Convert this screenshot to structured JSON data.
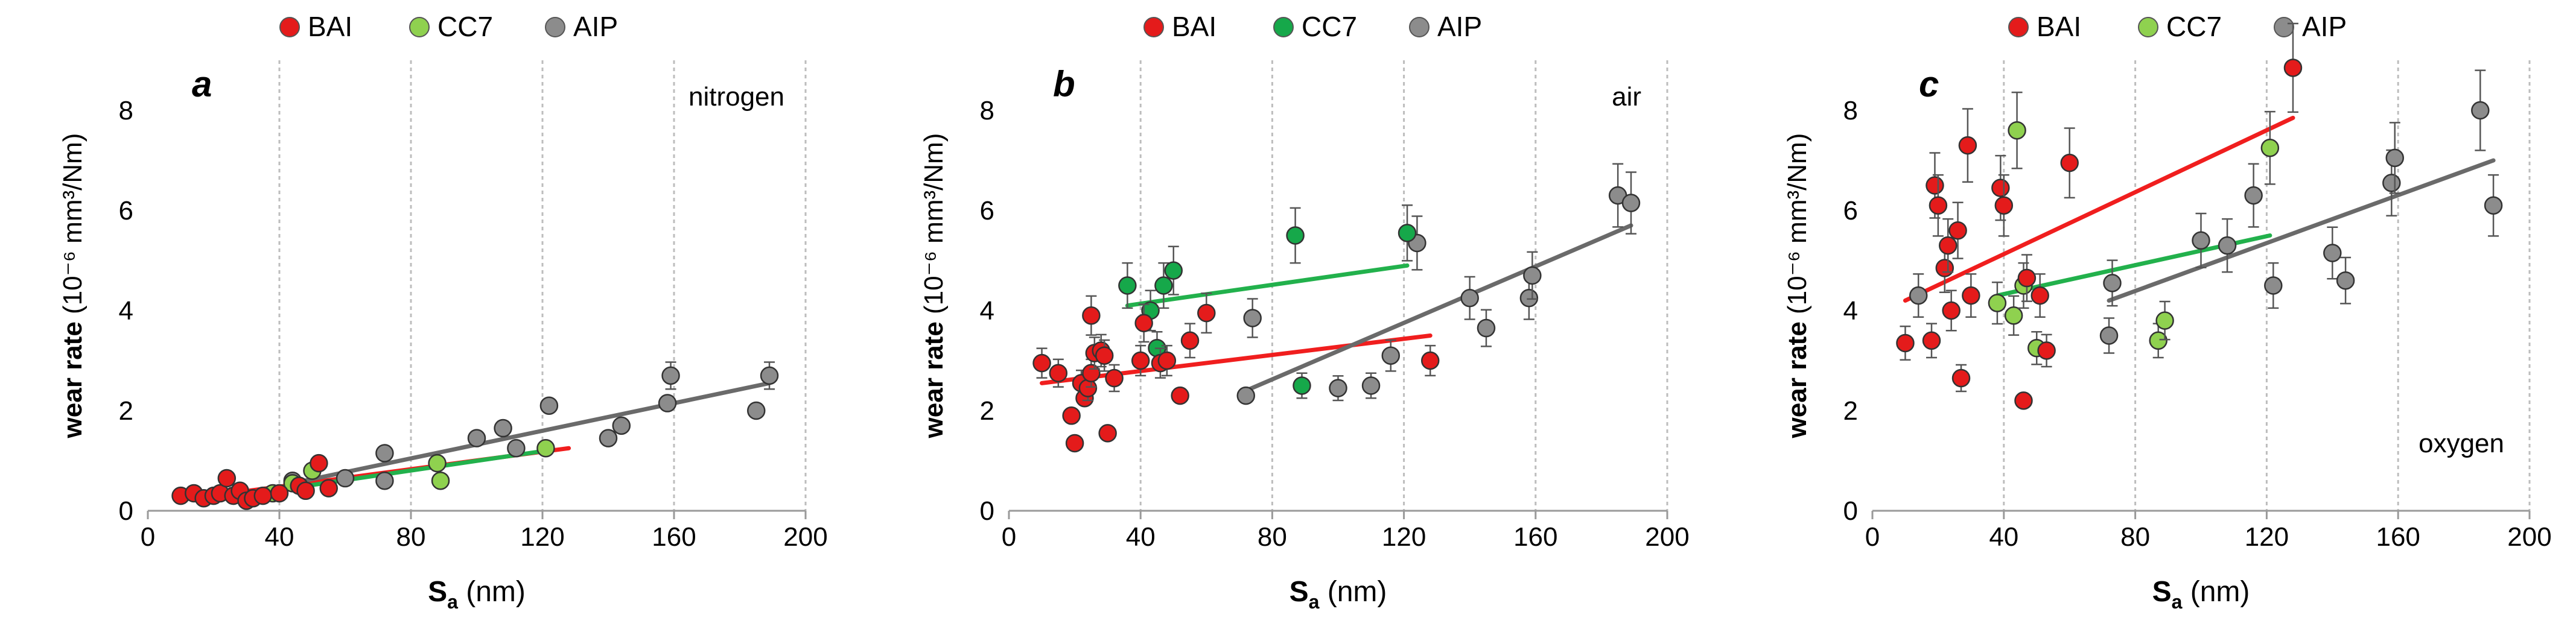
{
  "legend_labels": [
    "BAI",
    "CC7",
    "AIP"
  ],
  "colors": {
    "BAI": "#e41b1b",
    "CC7_a": "#8fd14f",
    "CC7_b": "#16a84a",
    "CC7_c": "#8fd14f",
    "AIP": "#8c8c8c",
    "fit_BAI": "#f01e1e",
    "fit_CC7": "#22b14c",
    "fit_AIP": "#6a6a6a",
    "grid": "#bdbdbd"
  },
  "chart_data": [
    {
      "type": "scatter",
      "panel_letter": "a",
      "atmosphere": "nitrogen",
      "xlabel_main": "S",
      "xlabel_sub": "a",
      "xlabel_unit": " (nm)",
      "ylabel": "wear rate (10⁻⁶ mm³/Nm)",
      "xlim": [
        0,
        200
      ],
      "ylim": [
        0,
        9
      ],
      "xticks": [
        "0",
        "40",
        "80",
        "120",
        "160",
        "200"
      ],
      "yticks": [
        "0",
        "2",
        "4",
        "6",
        "8"
      ],
      "legend_style": [
        "BAI",
        "CC7_a",
        "AIP"
      ],
      "series": [
        {
          "name": "BAI",
          "points": [
            [
              10,
              0.3
            ],
            [
              14,
              0.35
            ],
            [
              17,
              0.25
            ],
            [
              20,
              0.3
            ],
            [
              22,
              0.35
            ],
            [
              24,
              0.65
            ],
            [
              26,
              0.3
            ],
            [
              28,
              0.4
            ],
            [
              30,
              0.2
            ],
            [
              32,
              0.25
            ],
            [
              35,
              0.3
            ],
            [
              40,
              0.35
            ],
            [
              46,
              0.5
            ],
            [
              48,
              0.4
            ],
            [
              52,
              0.95
            ],
            [
              55,
              0.45
            ]
          ]
        },
        {
          "name": "CC7",
          "points": [
            [
              38,
              0.35
            ],
            [
              44,
              0.55
            ],
            [
              50,
              0.8
            ],
            [
              88,
              0.95
            ],
            [
              89,
              0.6
            ],
            [
              121,
              1.25
            ]
          ]
        },
        {
          "name": "AIP",
          "points": [
            [
              44,
              0.6
            ],
            [
              60,
              0.65
            ],
            [
              72,
              1.15
            ],
            [
              72,
              0.6
            ],
            [
              100,
              1.45
            ],
            [
              108,
              1.65
            ],
            [
              112,
              1.25
            ],
            [
              122,
              2.1
            ],
            [
              140,
              1.45
            ],
            [
              144,
              1.7
            ],
            [
              158,
              2.15
            ],
            [
              159,
              2.7
            ],
            [
              185,
              2.0
            ],
            [
              189,
              2.7
            ]
          ]
        }
      ],
      "fits": [
        {
          "name": "BAI",
          "x": [
            10,
            128
          ],
          "y": [
            0.22,
            1.25
          ]
        },
        {
          "name": "CC7",
          "x": [
            38,
            121
          ],
          "y": [
            0.4,
            1.2
          ]
        },
        {
          "name": "AIP",
          "x": [
            44,
            189
          ],
          "y": [
            0.55,
            2.55
          ]
        }
      ]
    },
    {
      "type": "scatter",
      "panel_letter": "b",
      "atmosphere": "air",
      "xlabel_main": "S",
      "xlabel_sub": "a",
      "xlabel_unit": " (nm)",
      "ylabel": "wear rate (10⁻⁶ mm³/Nm)",
      "xlim": [
        0,
        200
      ],
      "ylim": [
        0,
        9
      ],
      "xticks": [
        "0",
        "40",
        "80",
        "120",
        "160",
        "200"
      ],
      "yticks": [
        "0",
        "2",
        "4",
        "6",
        "8"
      ],
      "legend_style": [
        "BAI",
        "CC7_b",
        "AIP"
      ],
      "series": [
        {
          "name": "BAI",
          "points": [
            [
              10,
              2.95
            ],
            [
              15,
              2.75
            ],
            [
              19,
              1.9
            ],
            [
              20,
              1.35
            ],
            [
              22,
              2.55
            ],
            [
              23,
              2.25
            ],
            [
              24,
              2.45
            ],
            [
              25,
              2.75
            ],
            [
              25,
              3.9
            ],
            [
              26,
              3.15
            ],
            [
              28,
              3.2
            ],
            [
              29,
              3.1
            ],
            [
              30,
              1.55
            ],
            [
              32,
              2.65
            ],
            [
              40,
              3.0
            ],
            [
              41,
              3.75
            ],
            [
              46,
              2.95
            ],
            [
              48,
              3.0
            ],
            [
              52,
              2.3
            ],
            [
              55,
              3.4
            ],
            [
              60,
              3.95
            ],
            [
              128,
              3.0
            ]
          ]
        },
        {
          "name": "CC7",
          "points": [
            [
              36,
              4.5
            ],
            [
              43,
              4.0
            ],
            [
              45,
              3.25
            ],
            [
              47,
              4.5
            ],
            [
              50,
              4.8
            ],
            [
              87,
              5.5
            ],
            [
              89,
              2.5
            ],
            [
              121,
              5.55
            ]
          ]
        },
        {
          "name": "AIP",
          "points": [
            [
              72,
              2.3
            ],
            [
              74,
              3.85
            ],
            [
              100,
              2.45
            ],
            [
              110,
              2.5
            ],
            [
              116,
              3.1
            ],
            [
              124,
              5.35
            ],
            [
              140,
              4.25
            ],
            [
              145,
              3.65
            ],
            [
              158,
              4.25
            ],
            [
              159,
              4.7
            ],
            [
              185,
              6.3
            ],
            [
              189,
              6.15
            ]
          ]
        }
      ],
      "fits": [
        {
          "name": "BAI",
          "x": [
            10,
            128
          ],
          "y": [
            2.55,
            3.5
          ]
        },
        {
          "name": "CC7",
          "x": [
            36,
            121
          ],
          "y": [
            4.1,
            4.9
          ]
        },
        {
          "name": "AIP",
          "x": [
            72,
            189
          ],
          "y": [
            2.4,
            5.7
          ]
        }
      ]
    },
    {
      "type": "scatter",
      "panel_letter": "c",
      "atmosphere": "oxygen",
      "xlabel_main": "S",
      "xlabel_sub": "a",
      "xlabel_unit": " (nm)",
      "ylabel": "wear rate (10⁻⁶ mm³/Nm)",
      "xlim": [
        0,
        200
      ],
      "ylim": [
        0,
        9
      ],
      "xticks": [
        "0",
        "40",
        "80",
        "120",
        "160",
        "200"
      ],
      "yticks": [
        "0",
        "2",
        "4",
        "6",
        "8"
      ],
      "legend_style": [
        "BAI",
        "CC7_c",
        "AIP"
      ],
      "series": [
        {
          "name": "BAI",
          "points": [
            [
              10,
              3.35
            ],
            [
              18,
              3.4
            ],
            [
              19,
              6.5
            ],
            [
              20,
              6.1
            ],
            [
              22,
              4.85
            ],
            [
              23,
              5.3
            ],
            [
              24,
              4.0
            ],
            [
              26,
              5.6
            ],
            [
              27,
              2.65
            ],
            [
              29,
              7.3
            ],
            [
              30,
              4.3
            ],
            [
              39,
              6.45
            ],
            [
              40,
              6.1
            ],
            [
              46,
              2.2
            ],
            [
              47,
              4.65
            ],
            [
              51,
              4.3
            ],
            [
              53,
              3.2
            ],
            [
              60,
              6.95
            ],
            [
              128,
              8.85
            ]
          ]
        },
        {
          "name": "CC7",
          "points": [
            [
              38,
              4.15
            ],
            [
              43,
              3.9
            ],
            [
              44,
              7.6
            ],
            [
              46,
              4.5
            ],
            [
              50,
              3.25
            ],
            [
              87,
              3.4
            ],
            [
              89,
              3.8
            ],
            [
              121,
              7.25
            ]
          ]
        },
        {
          "name": "AIP",
          "points": [
            [
              14,
              4.3
            ],
            [
              72,
              3.5
            ],
            [
              73,
              4.55
            ],
            [
              100,
              5.4
            ],
            [
              108,
              5.3
            ],
            [
              116,
              6.3
            ],
            [
              122,
              4.5
            ],
            [
              140,
              5.15
            ],
            [
              144,
              4.6
            ],
            [
              158,
              6.55
            ],
            [
              159,
              7.05
            ],
            [
              185,
              8.0
            ],
            [
              189,
              6.1
            ]
          ]
        }
      ],
      "fits": [
        {
          "name": "BAI",
          "x": [
            10,
            128
          ],
          "y": [
            4.2,
            7.85
          ]
        },
        {
          "name": "CC7",
          "x": [
            38,
            121
          ],
          "y": [
            4.3,
            5.5
          ]
        },
        {
          "name": "AIP",
          "x": [
            72,
            189
          ],
          "y": [
            4.2,
            7.0
          ]
        }
      ]
    }
  ]
}
